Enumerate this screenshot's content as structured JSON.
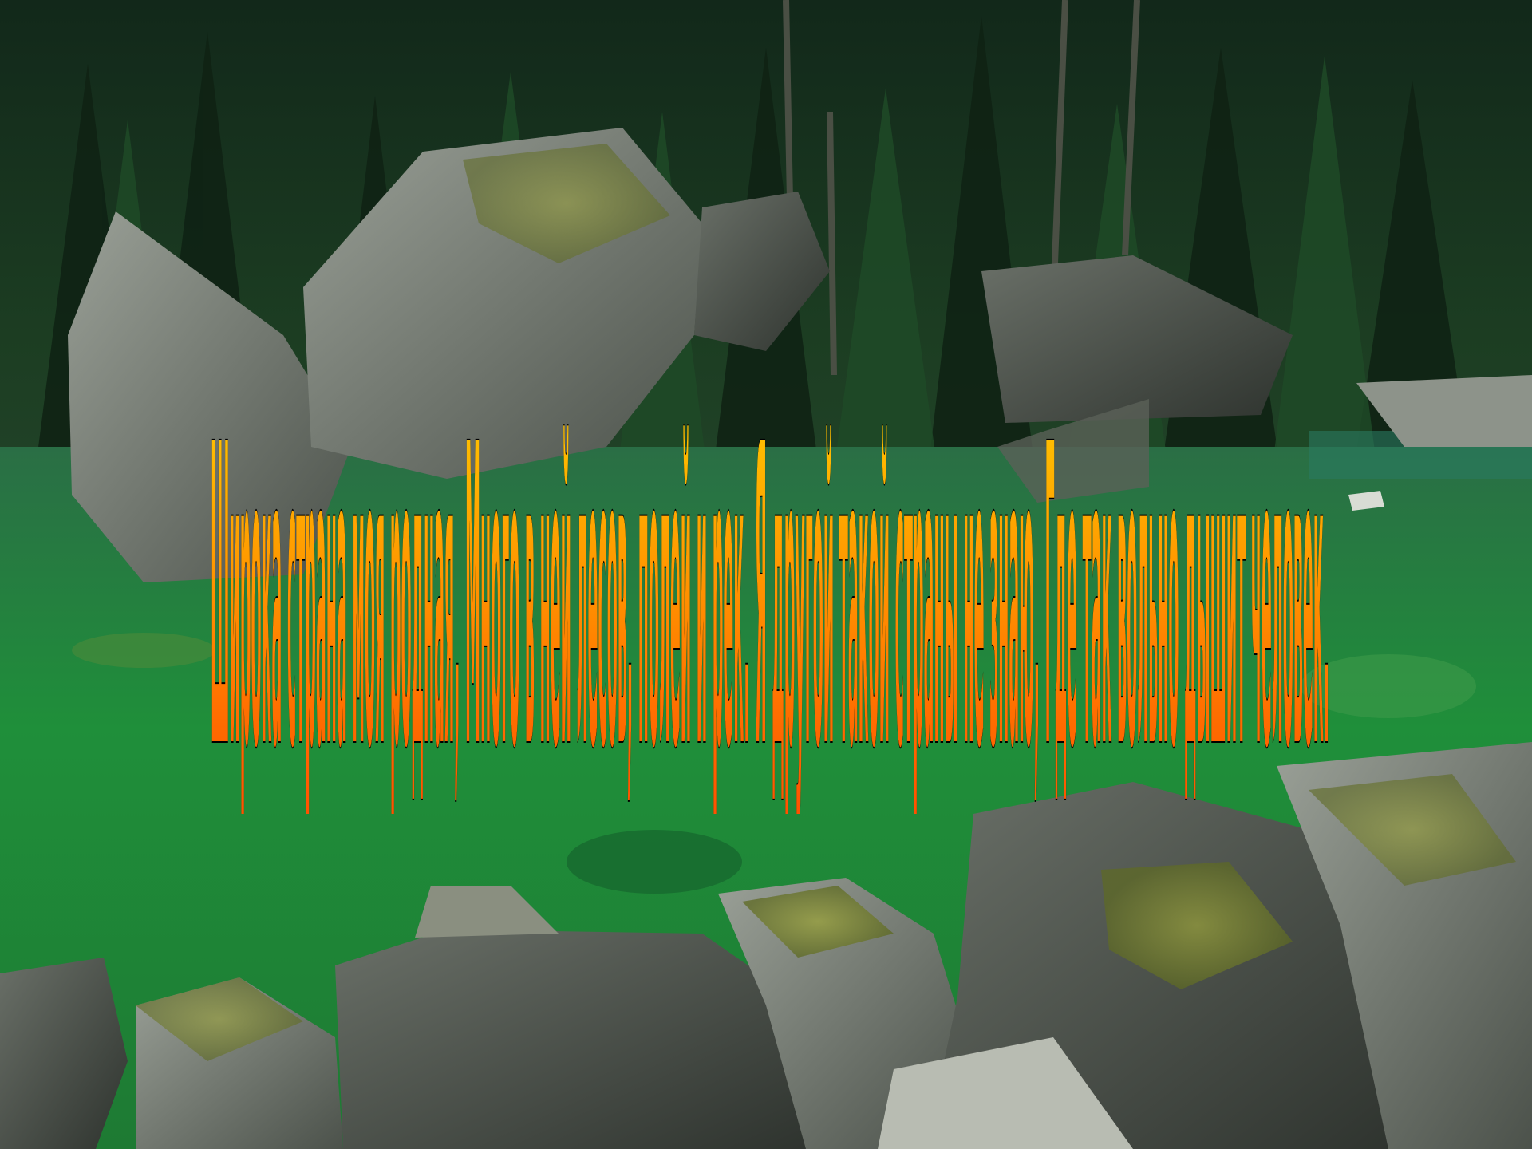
{
  "slide": {
    "title_text": "Широка страна моя родная, Много в ней лесов, полей и рек. Я другой такой страны не знаю, Где так вольно дышит человек.",
    "title_style": {
      "fill_top": "#ffd400",
      "fill_bottom": "#ff4a00",
      "outline": "#000000"
    },
    "background": {
      "forest_color": "#1b3a1f",
      "water_color": "#1f8f3a",
      "rock_color": "#6d736c",
      "moss_color": "#7d8a2a"
    }
  }
}
